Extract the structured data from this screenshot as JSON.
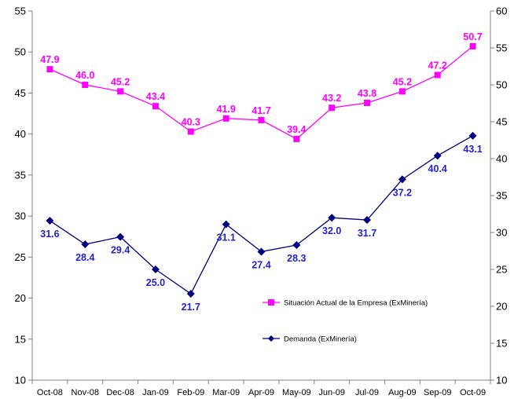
{
  "chart_data": {
    "type": "line",
    "categories": [
      "Oct-08",
      "Nov-08",
      "Dec-08",
      "Jan-09",
      "Feb-09",
      "Mar-09",
      "Apr-09",
      "May-09",
      "Jun-09",
      "Jul-09",
      "Aug-09",
      "Sep-09",
      "Oct-09"
    ],
    "left_axis": {
      "min": 10,
      "max": 55,
      "ticks": [
        "10",
        "15",
        "20",
        "25",
        "30",
        "35",
        "40",
        "45",
        "50",
        "55"
      ]
    },
    "right_axis": {
      "min": 10,
      "max": 60,
      "ticks": [
        "10",
        "15",
        "20",
        "25",
        "30",
        "35",
        "40",
        "45",
        "50",
        "55",
        "60"
      ]
    },
    "series": [
      {
        "name": "Situación Actual de la Empresa (ExMinería)",
        "axis": "left",
        "color": "#ff00ff",
        "marker": "square",
        "values": [
          47.9,
          46.0,
          45.2,
          43.4,
          40.3,
          41.9,
          41.7,
          39.4,
          43.2,
          43.8,
          45.2,
          47.2,
          50.7
        ],
        "labels": [
          "47.9",
          "46.0",
          "45.2",
          "43.4",
          "40.3",
          "41.9",
          "41.7",
          "39.4",
          "43.2",
          "43.8",
          "45.2",
          "47.2",
          "50.7"
        ]
      },
      {
        "name": "Demanda (ExMinería)",
        "axis": "right",
        "color": "#000080",
        "label_color": "#2222cc",
        "marker": "diamond",
        "values": [
          31.6,
          28.4,
          29.4,
          25.0,
          21.7,
          31.1,
          27.4,
          28.3,
          32.0,
          31.7,
          37.2,
          40.4,
          43.1
        ],
        "labels": [
          "31.6",
          "28.4",
          "29.4",
          "25.0",
          "21.7",
          "31.1",
          "27.4",
          "28.3",
          "32.0",
          "31.7",
          "37.2",
          "40.4",
          "43.1"
        ]
      }
    ],
    "legend_position": "right-middle",
    "grid": false
  }
}
